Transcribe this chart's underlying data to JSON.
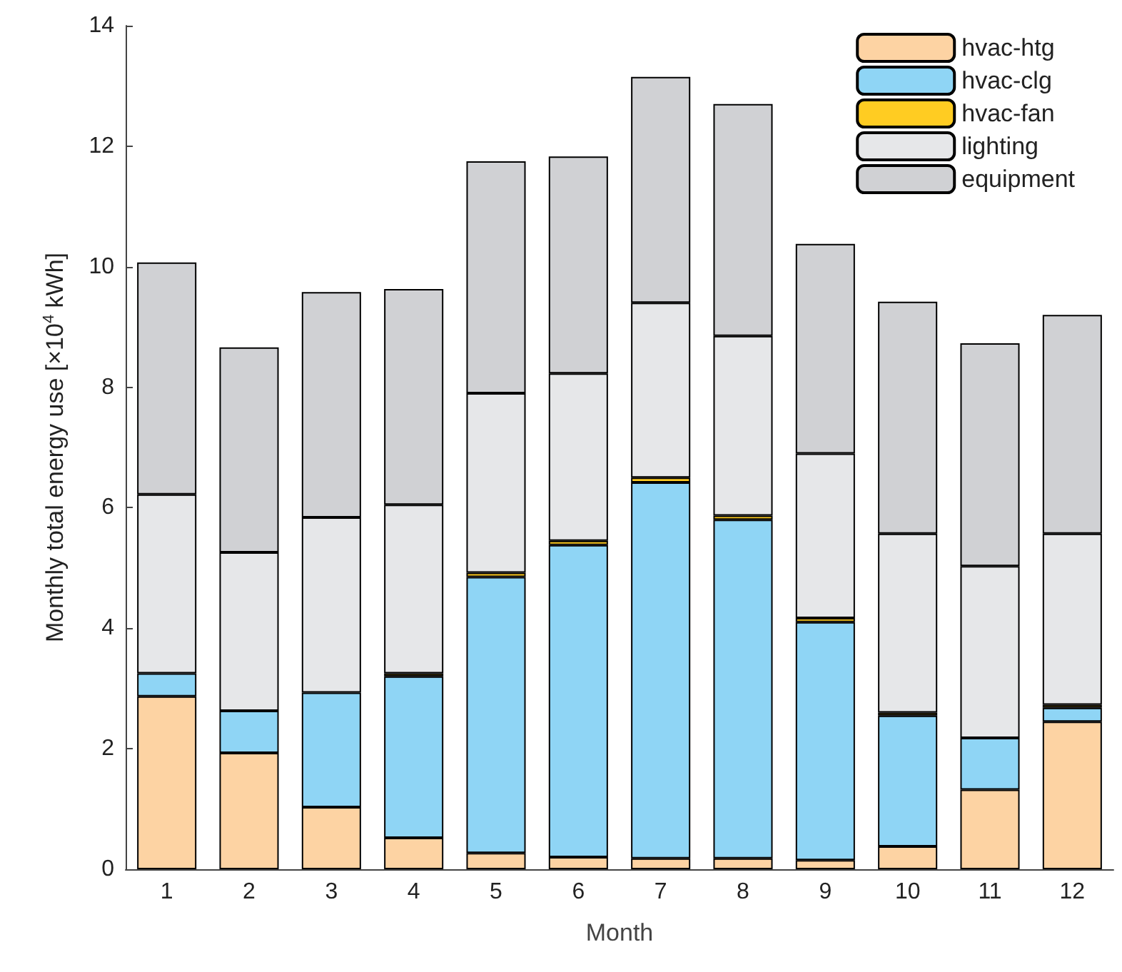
{
  "chart_data": {
    "type": "bar",
    "stacked": true,
    "xlabel": "Month",
    "ylabel": "Monthly total energy use [×10$^{4}$ kWh]",
    "categories": [
      "1",
      "2",
      "3",
      "4",
      "5",
      "6",
      "7",
      "8",
      "9",
      "10",
      "11",
      "12"
    ],
    "series": [
      {
        "name": "hvac-htg",
        "color": "#fdd3a3",
        "values": [
          2.87,
          1.93,
          1.03,
          0.52,
          0.27,
          0.2,
          0.18,
          0.18,
          0.15,
          0.38,
          1.32,
          2.45
        ]
      },
      {
        "name": "hvac-clg",
        "color": "#8fd5f5",
        "values": [
          0.38,
          0.7,
          1.9,
          2.68,
          4.58,
          5.18,
          6.24,
          5.62,
          3.95,
          2.17,
          0.86,
          0.23
        ]
      },
      {
        "name": "hvac-fan",
        "color": "#ffcc22",
        "values": [
          null,
          null,
          null,
          0.05,
          0.07,
          0.07,
          0.08,
          0.07,
          0.07,
          0.05,
          null,
          0.05
        ]
      },
      {
        "name": "lighting",
        "color": "#e6e7e9",
        "values": [
          2.97,
          2.63,
          2.91,
          2.8,
          2.98,
          2.78,
          2.9,
          2.98,
          2.73,
          2.97,
          2.85,
          2.84
        ]
      },
      {
        "name": "equipment",
        "color": "#d0d1d4",
        "values": [
          3.85,
          3.4,
          3.74,
          3.58,
          3.85,
          3.6,
          3.75,
          3.85,
          3.48,
          3.85,
          3.7,
          3.63
        ]
      }
    ],
    "ylim": [
      0,
      14
    ],
    "yticks": [
      0,
      2,
      4,
      6,
      8,
      10,
      12,
      14
    ],
    "grid": false,
    "legend": "top right"
  }
}
